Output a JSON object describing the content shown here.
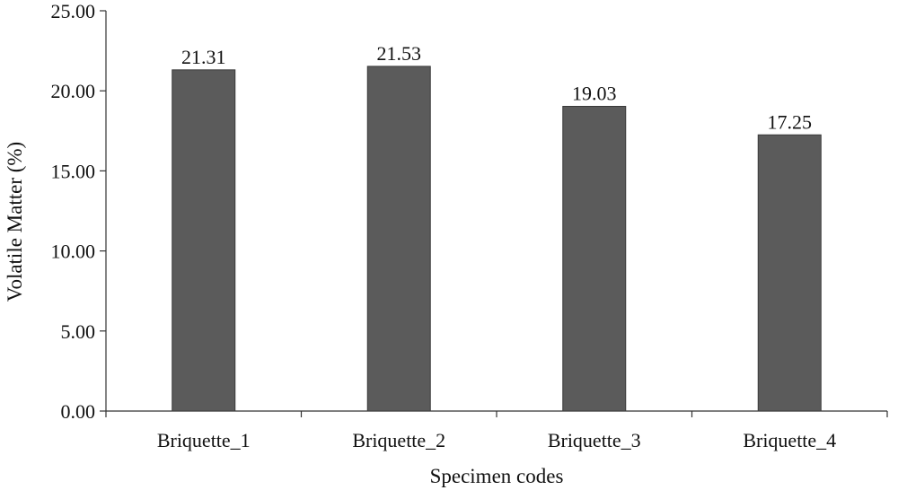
{
  "chart_data": {
    "type": "bar",
    "categories": [
      "Briquette_1",
      "Briquette_2",
      "Briquette_3",
      "Briquette_4"
    ],
    "values": [
      21.31,
      21.53,
      19.03,
      17.25
    ],
    "data_labels": [
      "21.31",
      "21.53",
      "19.03",
      "17.25"
    ],
    "title": "",
    "xlabel": "Specimen codes",
    "ylabel": "Volatile Matter (%)",
    "ylim": [
      0,
      25
    ],
    "yticks": [
      0,
      5,
      10,
      15,
      20,
      25
    ],
    "ytick_labels": [
      "0.00",
      "5.00",
      "10.00",
      "15.00",
      "20.00",
      "25.00"
    ],
    "grid": false,
    "legend": "none",
    "colors": {
      "bar_fill": "#5b5b5b",
      "bar_stroke": "#3a3a3a",
      "axis": "#333333",
      "text": "#111111"
    }
  }
}
